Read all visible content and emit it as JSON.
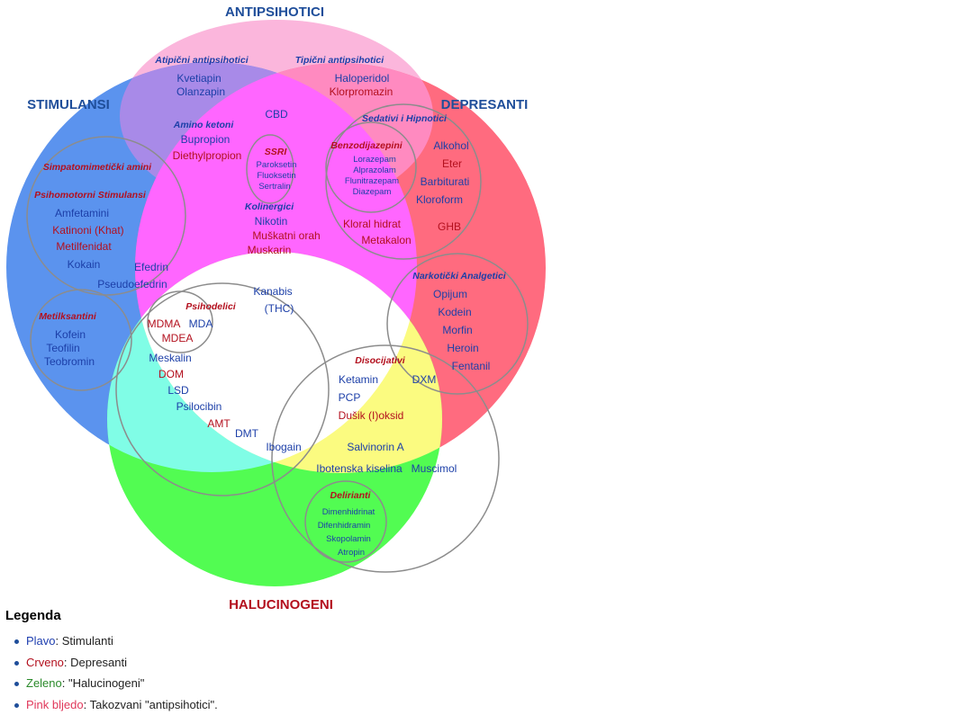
{
  "colors": {
    "stimulants": "#5b93ee",
    "depressants": "#ff6b7f",
    "hallucinogens": "#52fc52",
    "antipsychotics": "#fbb6dc",
    "stim_anti": "#a88ae8",
    "dep_anti": "#ff8ac0",
    "stim_dep": "#ff66ff",
    "stim_hal": "#80fde6",
    "dep_hal": "#fbfb80",
    "blue_text": "#1c3fa8",
    "red_text": "#b3101e",
    "header_blue": "#1f4e9a",
    "header_red": "#b3101e",
    "outline": "#8c8c8c"
  },
  "titles": {
    "antipsihotici": "ANTIPSIHOTICI",
    "stimulansi": "STIMULANSI",
    "depresanti": "DEPRESANTI",
    "halucinogeni": "HALUCINOGENI"
  },
  "groups": {
    "atipicni": "Atipični antipsihotici",
    "tipicni": "Tipični antipsihotici",
    "amino_ketoni": "Amino ketoni",
    "sedativi": "Sedativi i Hipnotici",
    "benzodijazepini": "Benzodijazepini",
    "ssri": "SSRI",
    "simpatomimeticki": "Simpatomimetički amini",
    "psihomotorni": "Psihomotorni Stimulansi",
    "kolinergici": "Kolinergici",
    "narkoticki": "Narkotički Analgetici",
    "metilksantini": "Metilksantini",
    "psihodelici": "Psihodelici",
    "disocijativi": "Disocijativi",
    "delirianti": "Delirianti"
  },
  "drugs": {
    "kvetiapin": "Kvetiapin",
    "olanzapin": "Olanzapin",
    "haloperidol": "Haloperidol",
    "klorpromazin": "Klorpromazin",
    "cbd": "CBD",
    "bupropion": "Bupropion",
    "diethylpropion": "Diethylpropion",
    "alkohol": "Alkohol",
    "eter": "Eter",
    "barbiturati": "Barbiturati",
    "kloroform": "Kloroform",
    "ghb": "GHB",
    "lorazepam": "Lorazepam",
    "alprazolam": "Alprazolam",
    "flunitrazepam": "Flunitrazepam",
    "diazepam": "Diazepam",
    "paroksetin": "Paroksetin",
    "fluoksetin": "Fluoksetin",
    "sertralin": "Sertralin",
    "nikotin": "Nikotin",
    "muskatni": "Muškatni orah",
    "muskarin": "Muskarin",
    "kloral": "Kloral hidrat",
    "metakalon": "Metakalon",
    "amfetamini": "Amfetamini",
    "katinoni": "Katinoni (Khat)",
    "metilfenidat": "Metilfenidat",
    "kokain": "Kokain",
    "efedrin": "Efedrin",
    "pseudoefedrin": "Pseudoefedrin",
    "kanabis": "Kanabis",
    "thc": "(THC)",
    "opijum": "Opijum",
    "kodein": "Kodein",
    "morfin": "Morfin",
    "heroin": "Heroin",
    "fentanil": "Fentanil",
    "kofein": "Kofein",
    "teofilin": "Teofilin",
    "teobromin": "Teobromin",
    "mdma": "MDMA",
    "mda": "MDA",
    "mdea": "MDEA",
    "meskalin": "Meskalin",
    "dom": "DOM",
    "lsd": "LSD",
    "psilocibin": "Psilocibin",
    "amt": "AMT",
    "dmt": "DMT",
    "ketamin": "Ketamin",
    "dxm": "DXM",
    "pcp": "PCP",
    "dusik": "Dušik (I)oksid",
    "ibogain": "Ibogain",
    "salvinorin": "Salvinorin A",
    "ibotenska": "Ibotenska kiselina",
    "muscimol": "Muscimol",
    "dimenhidrinat": "Dimenhidrinat",
    "difenhidramin": "Difenhidramin",
    "skopolamin": "Skopolamin",
    "atropin": "Atropin"
  },
  "legend": {
    "title": "Legenda",
    "items": [
      {
        "key": "Plavo",
        "value": ": Stimulanti",
        "color": "#1f3fb0"
      },
      {
        "key": "Crveno",
        "value": ": Depresanti",
        "color": "#b3101e"
      },
      {
        "key": "Zeleno",
        "value": ": \"Halucinogeni\"",
        "color": "#2a8a2a"
      },
      {
        "key": "Pink bljedo",
        "value": ": Takozvani \"antipsihotici\".",
        "color": "#e0385b"
      }
    ]
  }
}
